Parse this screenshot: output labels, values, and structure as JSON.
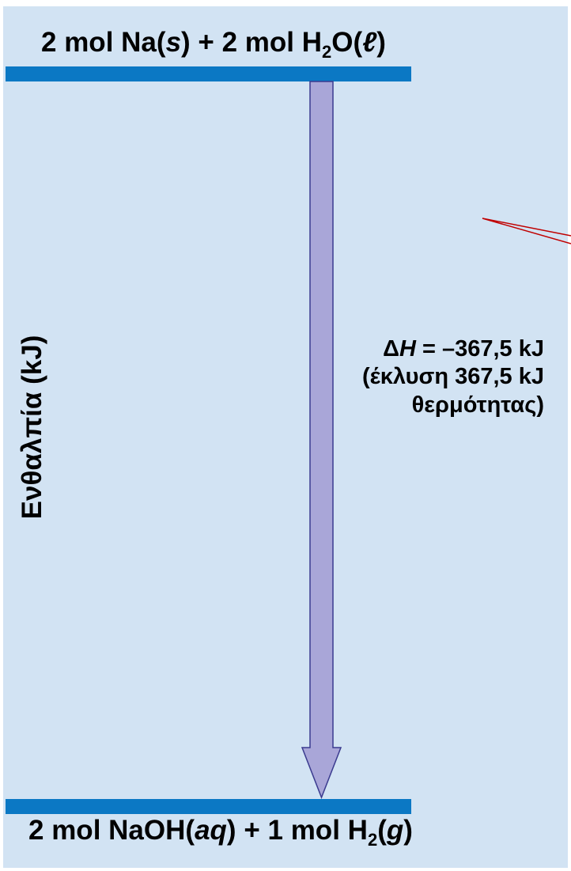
{
  "diagram": {
    "top_level": {
      "coefficient_1": "2 mol",
      "species_1": "Na(",
      "state_1": "s",
      "close_1": ")",
      "plus": "+",
      "coefficient_2": "2 mol",
      "species_2_pre": "H",
      "species_2_sub": "2",
      "species_2_post": "O(",
      "state_2": "ℓ",
      "close_2": ")"
    },
    "bottom_level": {
      "coefficient_1": "2 mol",
      "species_1": "NaOH(",
      "state_1": "aq",
      "close_1": ")",
      "plus": "+",
      "coefficient_2": "1 mol",
      "species_2_pre": "H",
      "species_2_sub": "2",
      "species_2_post": "(",
      "state_2": "g",
      "close_2": ")"
    },
    "y_axis_label": "Ενθαλπία (kJ)",
    "delta_h": {
      "symbol_delta": "Δ",
      "symbol_h": "H",
      "equals_value": " = –367,5 kJ",
      "line_2": "(έκλυση 367,5 kJ",
      "line_3": "θερμότητας)"
    },
    "colors": {
      "background": "#d2e3f3",
      "level_bar": "#0b78c4",
      "arrow_fill": "#a9a6d8",
      "arrow_stroke": "#3b3b8f",
      "pointer_line": "#c00000"
    }
  }
}
